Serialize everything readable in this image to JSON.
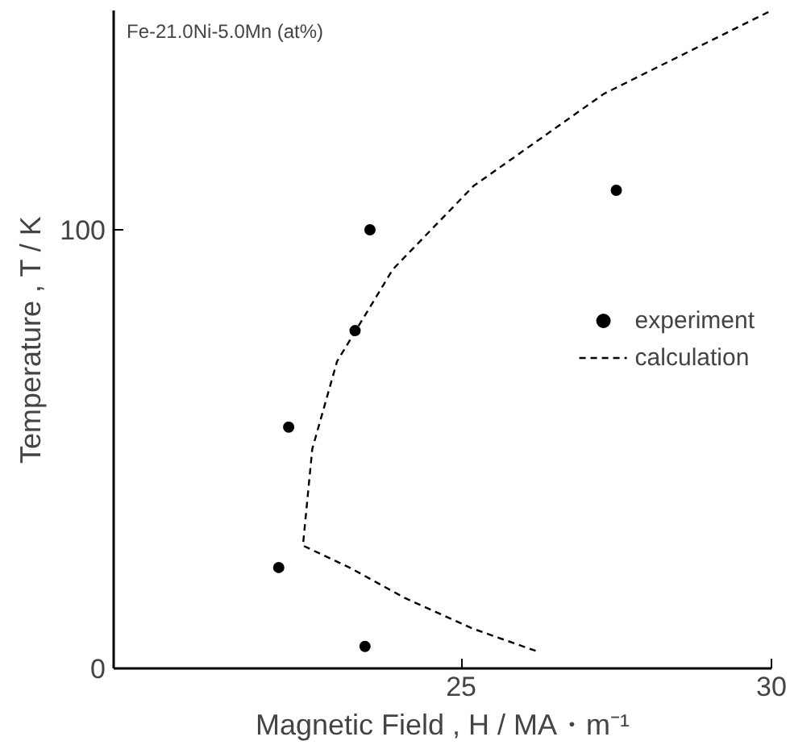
{
  "chart_data": {
    "type": "scatter",
    "xlabel": "Magnetic Field , H / MA・m⁻¹",
    "ylabel": "Temperature , T / K",
    "annotations": [
      "Fe-21.0Ni-5.0Mn (at%)"
    ],
    "xlim": [
      19.4,
      30
    ],
    "ylim": [
      0,
      150
    ],
    "xticks": [
      25,
      30
    ],
    "yticks": [
      0,
      100
    ],
    "grid": false,
    "legend": "right",
    "series": [
      {
        "name": "experiment",
        "color": "#000000",
        "marker": "circle",
        "x": [
          22.06,
          22.22,
          23.29,
          23.53,
          23.45,
          27.5
        ],
        "values": [
          23,
          55,
          77,
          100,
          5,
          109
        ]
      },
      {
        "name": "calculation",
        "type": "line",
        "color": "#000000",
        "line_style": "dashed",
        "marker": "none",
        "x": [
          26.2,
          25.2,
          24.1,
          23.2,
          22.45,
          22.6,
          23.0,
          23.9,
          25.2,
          27.3,
          30.0
        ],
        "values": [
          4,
          9,
          16,
          23,
          28,
          50,
          70,
          91,
          110,
          131,
          150
        ]
      }
    ]
  }
}
